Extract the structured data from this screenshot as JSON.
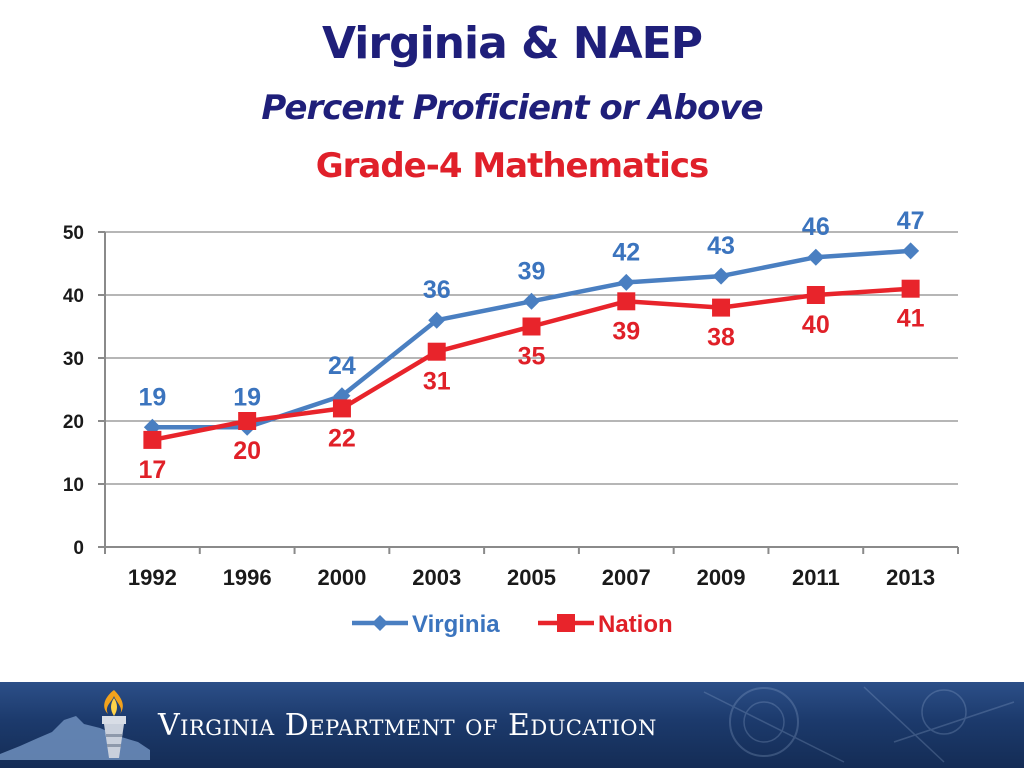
{
  "slide": {
    "title": "Virginia & NAEP",
    "subtitle": "Percent Proficient or Above",
    "subject": "Grade-4 Mathematics"
  },
  "footer": {
    "org_name": "Virginia Department of Education",
    "logo_icon": "torch-icon",
    "state_icon": "virginia-map-icon"
  },
  "chart_data": {
    "type": "line",
    "x": [
      "1992",
      "1996",
      "2000",
      "2003",
      "2005",
      "2007",
      "2009",
      "2011",
      "2013"
    ],
    "ylim": [
      0,
      50
    ],
    "yticks": [
      0,
      10,
      20,
      30,
      40,
      50
    ],
    "grid": true,
    "legend_position": "bottom-center",
    "series": [
      {
        "name": "Virginia",
        "values": [
          19,
          19,
          24,
          36,
          39,
          42,
          43,
          46,
          47
        ],
        "color": "#4a7fc1",
        "label_color": "#3b74be",
        "marker": "diamond",
        "labels_position": "above"
      },
      {
        "name": "Nation",
        "values": [
          17,
          20,
          22,
          31,
          35,
          39,
          38,
          40,
          41
        ],
        "color": "#e8242b",
        "label_color": "#e02028",
        "marker": "square",
        "labels_position": "below"
      }
    ]
  }
}
